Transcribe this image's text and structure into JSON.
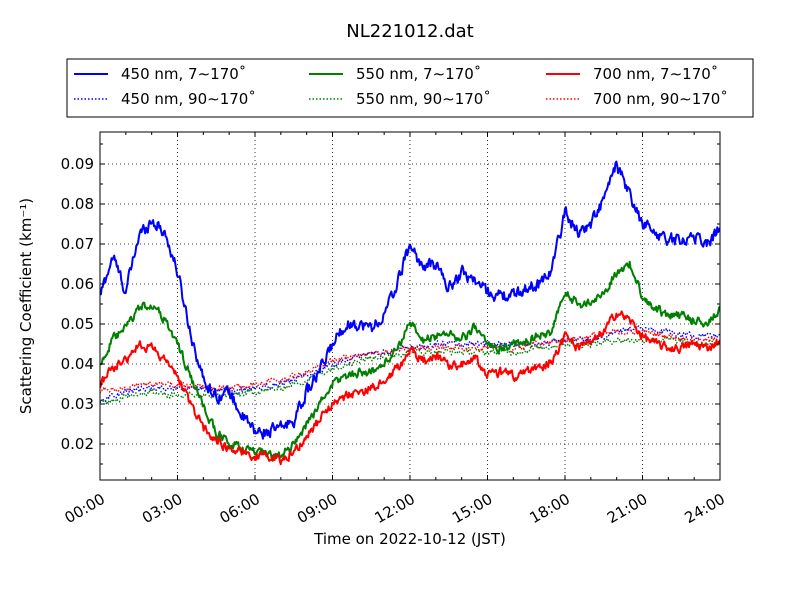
{
  "chart_data": {
    "type": "line",
    "title": "NL221012.dat",
    "xlabel": "Time on 2022-10-12 (JST)",
    "ylabel": "Scattering Coefficient (km⁻¹)",
    "xlim": [
      0,
      24
    ],
    "ylim": [
      0.011,
      0.098
    ],
    "x_ticks": [
      "00:00",
      "03:00",
      "06:00",
      "09:00",
      "12:00",
      "15:00",
      "18:00",
      "21:00",
      "24:00"
    ],
    "y_ticks": [
      "0.02",
      "0.03",
      "0.04",
      "0.05",
      "0.06",
      "0.07",
      "0.08",
      "0.09"
    ],
    "grid": true,
    "legend_position": "top (above plot, 3 columns)",
    "series": [
      {
        "name": "450 nm, 7∼170˚",
        "color": "#0000ff",
        "style": "solid",
        "noise": 0.0025,
        "x": [
          0,
          0.5,
          1,
          1.5,
          2,
          2.5,
          3,
          3.5,
          4,
          4.5,
          5,
          5.5,
          6,
          6.5,
          7,
          7.5,
          8,
          8.5,
          9,
          9.5,
          10,
          10.5,
          11,
          11.5,
          12,
          12.5,
          13,
          13.5,
          14,
          14.5,
          15,
          15.5,
          16,
          16.5,
          17,
          17.5,
          18,
          18.5,
          19,
          19.5,
          20,
          20.5,
          21,
          21.5,
          22,
          22.5,
          23,
          23.5,
          24
        ],
        "y": [
          0.057,
          0.067,
          0.058,
          0.072,
          0.076,
          0.073,
          0.063,
          0.048,
          0.036,
          0.032,
          0.033,
          0.027,
          0.023,
          0.023,
          0.024,
          0.026,
          0.033,
          0.038,
          0.045,
          0.05,
          0.05,
          0.049,
          0.052,
          0.06,
          0.07,
          0.064,
          0.065,
          0.059,
          0.063,
          0.061,
          0.058,
          0.057,
          0.057,
          0.059,
          0.06,
          0.064,
          0.078,
          0.073,
          0.075,
          0.081,
          0.09,
          0.082,
          0.075,
          0.073,
          0.071,
          0.071,
          0.072,
          0.07,
          0.074
        ]
      },
      {
        "name": "450 nm, 90∼170˚",
        "color": "#0000ff",
        "style": "dotted",
        "noise": 0.0012,
        "x": [
          0,
          1,
          2,
          3,
          4,
          5,
          6,
          7,
          8,
          9,
          10,
          11,
          12,
          13,
          14,
          15,
          16,
          17,
          18,
          19,
          20,
          21,
          22,
          23,
          24
        ],
        "y": [
          0.031,
          0.033,
          0.034,
          0.034,
          0.034,
          0.033,
          0.034,
          0.035,
          0.037,
          0.04,
          0.042,
          0.043,
          0.044,
          0.045,
          0.045,
          0.045,
          0.045,
          0.045,
          0.046,
          0.046,
          0.048,
          0.049,
          0.048,
          0.047,
          0.047
        ]
      },
      {
        "name": "550 nm, 7∼170˚",
        "color": "#008000",
        "style": "solid",
        "noise": 0.0018,
        "x": [
          0,
          0.5,
          1,
          1.5,
          2,
          2.5,
          3,
          3.5,
          4,
          4.5,
          5,
          5.5,
          6,
          6.5,
          7,
          7.5,
          8,
          8.5,
          9,
          9.5,
          10,
          10.5,
          11,
          11.5,
          12,
          12.5,
          13,
          13.5,
          14,
          14.5,
          15,
          15.5,
          16,
          16.5,
          17,
          17.5,
          18,
          18.5,
          19,
          19.5,
          20,
          20.5,
          21,
          21.5,
          22,
          22.5,
          23,
          23.5,
          24
        ],
        "y": [
          0.04,
          0.046,
          0.049,
          0.054,
          0.055,
          0.051,
          0.045,
          0.037,
          0.029,
          0.023,
          0.02,
          0.019,
          0.018,
          0.017,
          0.017,
          0.02,
          0.025,
          0.03,
          0.035,
          0.037,
          0.038,
          0.038,
          0.04,
          0.044,
          0.05,
          0.046,
          0.047,
          0.048,
          0.046,
          0.049,
          0.045,
          0.044,
          0.045,
          0.046,
          0.047,
          0.048,
          0.058,
          0.055,
          0.055,
          0.058,
          0.063,
          0.065,
          0.057,
          0.054,
          0.052,
          0.052,
          0.051,
          0.05,
          0.054
        ]
      },
      {
        "name": "550 nm, 90∼170˚",
        "color": "#008000",
        "style": "dotted",
        "noise": 0.0012,
        "x": [
          0,
          1,
          2,
          3,
          4,
          5,
          6,
          7,
          8,
          9,
          10,
          11,
          12,
          13,
          14,
          15,
          16,
          17,
          18,
          19,
          20,
          21,
          22,
          23,
          24
        ],
        "y": [
          0.03,
          0.032,
          0.033,
          0.032,
          0.032,
          0.032,
          0.033,
          0.034,
          0.036,
          0.039,
          0.041,
          0.042,
          0.043,
          0.043,
          0.043,
          0.043,
          0.043,
          0.044,
          0.045,
          0.045,
          0.046,
          0.046,
          0.046,
          0.045,
          0.045
        ]
      },
      {
        "name": "700 nm, 7∼170˚",
        "color": "#ff0000",
        "style": "solid",
        "noise": 0.0018,
        "x": [
          0,
          0.5,
          1,
          1.5,
          2,
          2.5,
          3,
          3.5,
          4,
          4.5,
          5,
          5.5,
          6,
          6.5,
          7,
          7.5,
          8,
          8.5,
          9,
          9.5,
          10,
          10.5,
          11,
          11.5,
          12,
          12.5,
          13,
          13.5,
          14,
          14.5,
          15,
          15.5,
          16,
          16.5,
          17,
          17.5,
          18,
          18.5,
          19,
          19.5,
          20,
          20.5,
          21,
          21.5,
          22,
          22.5,
          23,
          23.5,
          24
        ],
        "y": [
          0.035,
          0.039,
          0.041,
          0.045,
          0.044,
          0.041,
          0.037,
          0.03,
          0.024,
          0.021,
          0.019,
          0.018,
          0.017,
          0.017,
          0.016,
          0.018,
          0.022,
          0.026,
          0.03,
          0.032,
          0.033,
          0.034,
          0.035,
          0.039,
          0.043,
          0.041,
          0.042,
          0.04,
          0.04,
          0.042,
          0.037,
          0.038,
          0.037,
          0.038,
          0.039,
          0.041,
          0.047,
          0.044,
          0.045,
          0.048,
          0.053,
          0.051,
          0.047,
          0.045,
          0.044,
          0.044,
          0.045,
          0.044,
          0.046
        ]
      },
      {
        "name": "700 nm, 90∼170˚",
        "color": "#ff0000",
        "style": "dotted",
        "noise": 0.0012,
        "x": [
          0,
          1,
          2,
          3,
          4,
          5,
          6,
          7,
          8,
          9,
          10,
          11,
          12,
          13,
          14,
          15,
          16,
          17,
          18,
          19,
          20,
          21,
          22,
          23,
          24
        ],
        "y": [
          0.033,
          0.034,
          0.035,
          0.035,
          0.034,
          0.034,
          0.035,
          0.036,
          0.038,
          0.041,
          0.042,
          0.043,
          0.044,
          0.044,
          0.044,
          0.044,
          0.044,
          0.045,
          0.046,
          0.047,
          0.048,
          0.048,
          0.047,
          0.046,
          0.046
        ]
      }
    ]
  }
}
